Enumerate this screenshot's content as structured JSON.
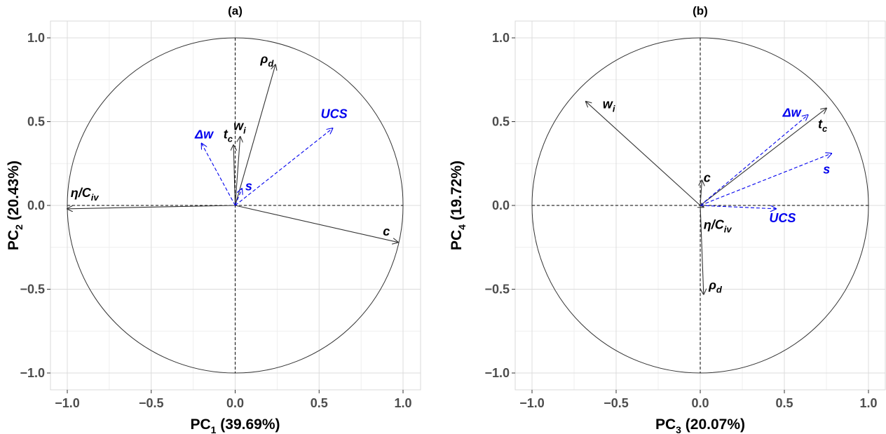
{
  "chart_data": [
    {
      "type": "biplot",
      "title": "(a)",
      "xlabel": {
        "main": "PC",
        "sub": "1",
        "rest": " (39.69%)"
      },
      "ylabel": {
        "main": "PC",
        "sub": "2",
        "rest": " (20.43%)"
      },
      "xlim": [
        -1.1,
        1.1
      ],
      "ylim": [
        -1.1,
        1.1
      ],
      "x_ticks": [
        -1.0,
        -0.5,
        0.0,
        0.5,
        1.0
      ],
      "y_ticks": [
        -1.0,
        -0.5,
        0.0,
        0.5,
        1.0
      ],
      "x_tick_labels": [
        "−1.0",
        "−0.5",
        "0.0",
        "0.5",
        "1.0"
      ],
      "y_tick_labels": [
        "−1.0",
        "−0.5",
        "0.0",
        "0.5",
        "1.0"
      ],
      "grid": true,
      "unit_circle": true,
      "vectors": [
        {
          "name": "η/C",
          "sub": "iv",
          "x": -1.0,
          "y": -0.02,
          "style": "solid",
          "color": "#333333",
          "lx": -0.98,
          "ly": 0.05
        },
        {
          "name": "c",
          "sub": "",
          "x": 0.97,
          "y": -0.22,
          "style": "solid",
          "color": "#333333",
          "lx": 0.88,
          "ly": -0.18
        },
        {
          "name": "ρ",
          "sub": "d",
          "x": 0.24,
          "y": 0.84,
          "style": "solid",
          "color": "#333333",
          "lx": 0.15,
          "ly": 0.85
        },
        {
          "name": "t",
          "sub": "c",
          "x": -0.01,
          "y": 0.36,
          "style": "solid",
          "color": "#333333",
          "lx": -0.07,
          "ly": 0.4
        },
        {
          "name": "w",
          "sub": "i",
          "x": 0.03,
          "y": 0.41,
          "style": "solid",
          "color": "#333333",
          "lx": -0.01,
          "ly": 0.45
        },
        {
          "name": "Δw",
          "sub": "",
          "x": -0.2,
          "y": 0.37,
          "style": "dashed",
          "color": "#0000ee",
          "lx": -0.24,
          "ly": 0.4
        },
        {
          "name": "UCS",
          "sub": "",
          "x": 0.58,
          "y": 0.46,
          "style": "dashed",
          "color": "#0000ee",
          "lx": 0.51,
          "ly": 0.52
        },
        {
          "name": "s",
          "sub": "",
          "x": 0.04,
          "y": 0.1,
          "style": "dashed",
          "color": "#0000ee",
          "lx": 0.06,
          "ly": 0.09
        }
      ]
    },
    {
      "type": "biplot",
      "title": "(b)",
      "xlabel": {
        "main": "PC",
        "sub": "3",
        "rest": " (20.07%)"
      },
      "ylabel": {
        "main": "PC",
        "sub": "4",
        "rest": " (19.72%)"
      },
      "xlim": [
        -1.1,
        1.1
      ],
      "ylim": [
        -1.1,
        1.1
      ],
      "x_ticks": [
        -1.0,
        -0.5,
        0.0,
        0.5,
        1.0
      ],
      "y_ticks": [
        -1.0,
        -0.5,
        0.0,
        0.5,
        1.0
      ],
      "x_tick_labels": [
        "−1.0",
        "−0.5",
        "0.0",
        "0.5",
        "1.0"
      ],
      "y_tick_labels": [
        "−1.0",
        "−0.5",
        "0.0",
        "0.5",
        "1.0"
      ],
      "grid": true,
      "unit_circle": true,
      "vectors": [
        {
          "name": "w",
          "sub": "i",
          "x": -0.68,
          "y": 0.62,
          "style": "solid",
          "color": "#333333",
          "lx": -0.58,
          "ly": 0.58
        },
        {
          "name": "t",
          "sub": "c",
          "x": 0.75,
          "y": 0.58,
          "style": "solid",
          "color": "#333333",
          "lx": 0.7,
          "ly": 0.46
        },
        {
          "name": "Δw",
          "sub": "",
          "x": 0.64,
          "y": 0.54,
          "style": "dashed",
          "color": "#0000ee",
          "lx": 0.49,
          "ly": 0.53
        },
        {
          "name": "s",
          "sub": "",
          "x": 0.78,
          "y": 0.31,
          "style": "dashed",
          "color": "#0000ee",
          "lx": 0.73,
          "ly": 0.19
        },
        {
          "name": "c",
          "sub": "",
          "x": 0.01,
          "y": 0.15,
          "style": "solid",
          "color": "#333333",
          "lx": 0.02,
          "ly": 0.14
        },
        {
          "name": "η/C",
          "sub": "iv",
          "x": 0.02,
          "y": -0.01,
          "style": "solid",
          "color": "#333333",
          "lx": 0.02,
          "ly": -0.14
        },
        {
          "name": "UCS",
          "sub": "",
          "x": 0.45,
          "y": -0.02,
          "style": "dashed",
          "color": "#0000ee",
          "lx": 0.41,
          "ly": -0.1
        },
        {
          "name": "ρ",
          "sub": "d",
          "x": 0.02,
          "y": -0.53,
          "style": "solid",
          "color": "#333333",
          "lx": 0.05,
          "ly": -0.5
        }
      ]
    }
  ]
}
